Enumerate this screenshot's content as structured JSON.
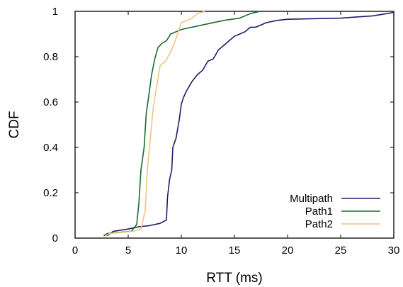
{
  "chart_data": {
    "type": "line",
    "title": "",
    "xlabel": "RTT (ms)",
    "ylabel": "CDF",
    "xlim": [
      0,
      30
    ],
    "ylim": [
      0,
      1
    ],
    "xticks": [
      0,
      5,
      10,
      15,
      20,
      25,
      30
    ],
    "xtick_labels": [
      "0",
      "5",
      "10",
      "15",
      "20",
      "25",
      "30"
    ],
    "yticks": [
      0,
      0.2,
      0.4,
      0.6,
      0.8,
      1
    ],
    "ytick_labels": [
      "0",
      "0.2",
      "0.4",
      "0.6",
      "0.8",
      "1"
    ],
    "grid": false,
    "legend_position": "bottom-right",
    "series": [
      {
        "name": "Multipath",
        "color": "#1e1b6e",
        "points": [
          [
            3.0,
            0.01
          ],
          [
            3.3,
            0.02
          ],
          [
            3.6,
            0.03
          ],
          [
            5.0,
            0.04
          ],
          [
            6.0,
            0.05
          ],
          [
            7.0,
            0.055
          ],
          [
            8.0,
            0.065
          ],
          [
            8.6,
            0.08
          ],
          [
            8.7,
            0.18
          ],
          [
            8.9,
            0.26
          ],
          [
            9.1,
            0.3
          ],
          [
            9.2,
            0.4
          ],
          [
            9.5,
            0.44
          ],
          [
            9.8,
            0.52
          ],
          [
            10.0,
            0.59
          ],
          [
            10.2,
            0.62
          ],
          [
            10.5,
            0.65
          ],
          [
            11.0,
            0.69
          ],
          [
            11.5,
            0.72
          ],
          [
            12.0,
            0.74
          ],
          [
            12.5,
            0.78
          ],
          [
            13.0,
            0.79
          ],
          [
            13.5,
            0.83
          ],
          [
            14.0,
            0.85
          ],
          [
            14.5,
            0.87
          ],
          [
            15.0,
            0.89
          ],
          [
            15.5,
            0.9
          ],
          [
            16.0,
            0.91
          ],
          [
            16.5,
            0.93
          ],
          [
            17.0,
            0.93
          ],
          [
            18.0,
            0.95
          ],
          [
            19.0,
            0.96
          ],
          [
            20.0,
            0.965
          ],
          [
            25.0,
            0.97
          ],
          [
            28.0,
            0.98
          ],
          [
            30.0,
            0.995
          ]
        ]
      },
      {
        "name": "Path1",
        "color": "#1b6b2c",
        "points": [
          [
            2.7,
            0.01
          ],
          [
            3.0,
            0.02
          ],
          [
            4.0,
            0.025
          ],
          [
            5.3,
            0.03
          ],
          [
            5.8,
            0.06
          ],
          [
            6.0,
            0.15
          ],
          [
            6.2,
            0.3
          ],
          [
            6.5,
            0.4
          ],
          [
            6.7,
            0.55
          ],
          [
            7.0,
            0.65
          ],
          [
            7.2,
            0.72
          ],
          [
            7.5,
            0.79
          ],
          [
            7.8,
            0.84
          ],
          [
            8.2,
            0.86
          ],
          [
            8.6,
            0.87
          ],
          [
            9.0,
            0.9
          ],
          [
            9.5,
            0.91
          ],
          [
            10.0,
            0.92
          ],
          [
            12.0,
            0.94
          ],
          [
            14.0,
            0.96
          ],
          [
            15.5,
            0.97
          ],
          [
            16.5,
            0.99
          ],
          [
            17.4,
            1.0
          ]
        ]
      },
      {
        "name": "Path2",
        "color": "#e8c880",
        "points": [
          [
            2.9,
            0.01
          ],
          [
            3.2,
            0.02
          ],
          [
            5.5,
            0.03
          ],
          [
            6.2,
            0.04
          ],
          [
            6.4,
            0.08
          ],
          [
            6.6,
            0.12
          ],
          [
            6.8,
            0.3
          ],
          [
            7.1,
            0.45
          ],
          [
            7.3,
            0.55
          ],
          [
            7.5,
            0.62
          ],
          [
            7.8,
            0.7
          ],
          [
            8.0,
            0.76
          ],
          [
            8.5,
            0.78
          ],
          [
            9.0,
            0.82
          ],
          [
            9.5,
            0.88
          ],
          [
            10.0,
            0.95
          ],
          [
            11.0,
            0.97
          ],
          [
            11.5,
            0.99
          ],
          [
            12.2,
            1.0
          ]
        ]
      }
    ]
  }
}
